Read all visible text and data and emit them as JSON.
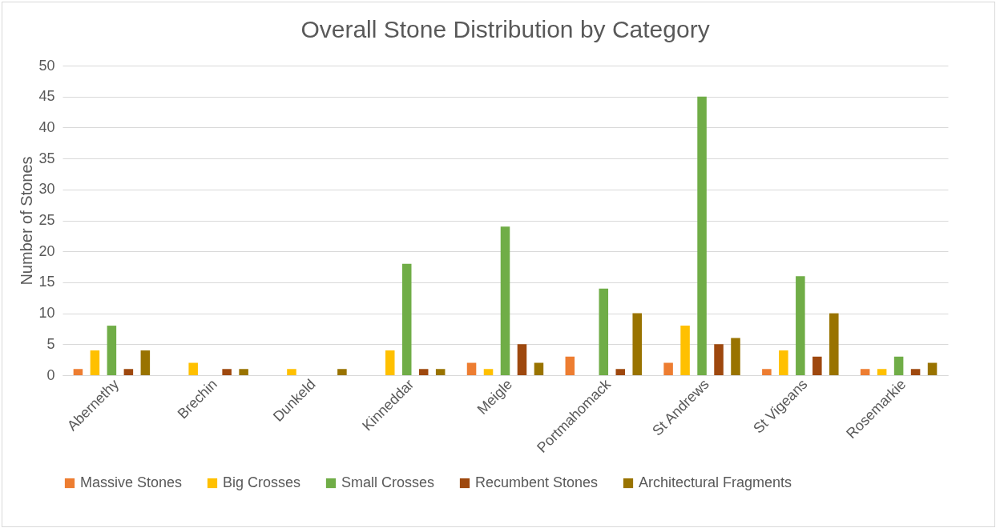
{
  "chart_data": {
    "type": "bar",
    "title": "Overall Stone Distribution by Category",
    "ylabel": "Number of Stones",
    "categories": [
      "Abernethy",
      "Brechin",
      "Dunkeld",
      "Kinneddar",
      "Meigle",
      "Portmahomack",
      "St Andrews",
      "St Vigeans",
      "Rosemarkie"
    ],
    "series": [
      {
        "name": "Massive Stones",
        "color": "#ed7d31",
        "values": [
          1,
          0,
          0,
          0,
          2,
          3,
          2,
          1,
          1
        ]
      },
      {
        "name": "Big Crosses",
        "color": "#ffc000",
        "values": [
          4,
          2,
          1,
          4,
          1,
          0,
          8,
          4,
          1
        ]
      },
      {
        "name": "Small Crosses",
        "color": "#70ad47",
        "values": [
          8,
          0,
          0,
          18,
          24,
          14,
          45,
          16,
          3
        ]
      },
      {
        "name": "Recumbent Stones",
        "color": "#9e480e",
        "values": [
          1,
          1,
          0,
          1,
          5,
          1,
          5,
          3,
          1
        ]
      },
      {
        "name": "Architectural Fragments",
        "color": "#997300",
        "values": [
          4,
          1,
          1,
          1,
          2,
          10,
          6,
          10,
          2
        ]
      }
    ],
    "ylim": [
      0,
      50
    ],
    "yticks": [
      0,
      5,
      10,
      15,
      20,
      25,
      30,
      35,
      40,
      45,
      50
    ],
    "grid": "y",
    "legend": "bottom"
  }
}
